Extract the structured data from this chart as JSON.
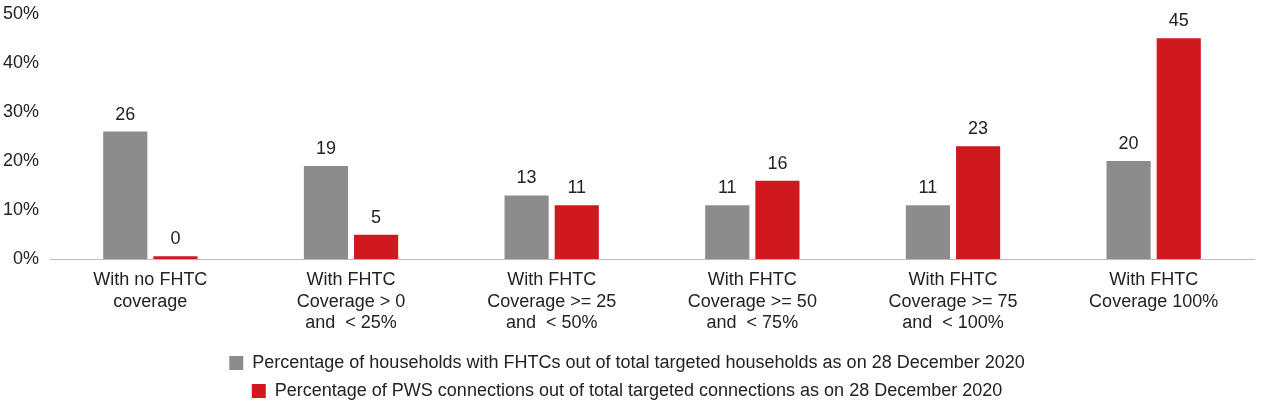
{
  "chart_data": {
    "type": "bar",
    "categories": [
      "With no FHTC coverage",
      "With FHTC Coverage > 0 and  < 25%",
      "With FHTC Coverage >= 25 and  < 50%",
      "With FHTC Coverage >= 50 and  < 75%",
      "With FHTC Coverage >= 75 and  < 100%",
      "With FHTC Coverage 100%"
    ],
    "series": [
      {
        "name": "Percentage of households with FHTCs out of total targeted households as on 28 December 2020",
        "color": "#8c8c8c",
        "values": [
          26,
          19,
          13,
          11,
          11,
          20
        ]
      },
      {
        "name": "Percentage of PWS connections out of total targeted connections as on 28 December 2020",
        "color": "#d0191f",
        "values": [
          0,
          5,
          11,
          16,
          23,
          45
        ]
      }
    ],
    "ylim": [
      0,
      50
    ],
    "yticks": [
      {
        "value": 0,
        "label": "0%"
      },
      {
        "value": 10,
        "label": "10%"
      },
      {
        "value": 20,
        "label": "20%"
      },
      {
        "value": 30,
        "label": "30%"
      },
      {
        "value": 40,
        "label": "40%"
      },
      {
        "value": 50,
        "label": "50%"
      }
    ],
    "grid": false,
    "legend": "bottom",
    "data_labels": true
  }
}
